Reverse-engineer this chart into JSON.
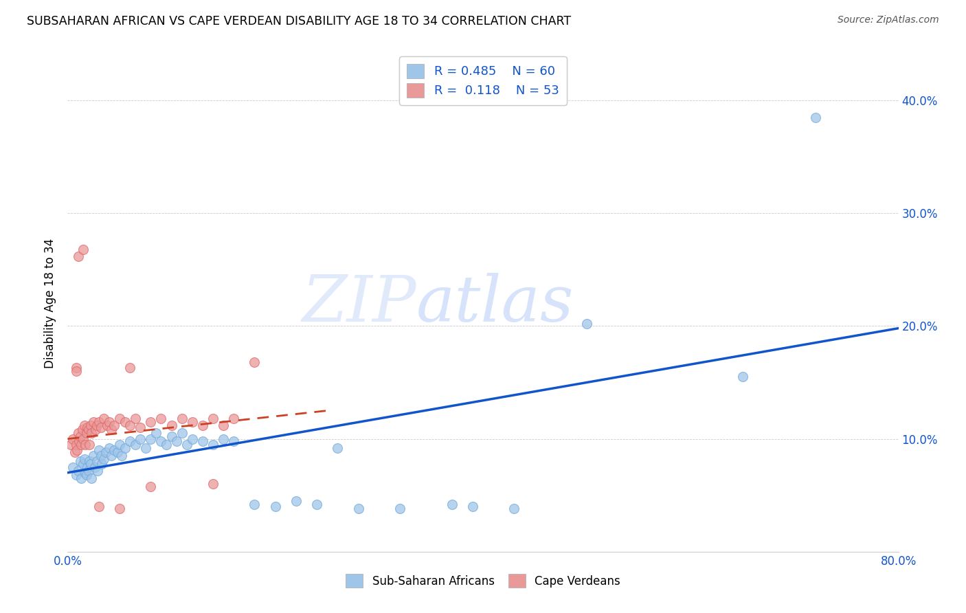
{
  "title": "SUBSAHARAN AFRICAN VS CAPE VERDEAN DISABILITY AGE 18 TO 34 CORRELATION CHART",
  "source": "Source: ZipAtlas.com",
  "ylabel": "Disability Age 18 to 34",
  "xlim": [
    0.0,
    0.8
  ],
  "ylim": [
    0.0,
    0.44
  ],
  "blue_color": "#9fc5e8",
  "pink_color": "#ea9999",
  "blue_line_color": "#1155cc",
  "pink_line_color": "#cc4125",
  "watermark_zip": "ZIP",
  "watermark_atlas": "atlas",
  "legend_text_color": "#1155cc",
  "blue_scatter_x": [
    0.005,
    0.008,
    0.01,
    0.012,
    0.013,
    0.015,
    0.016,
    0.017,
    0.018,
    0.019,
    0.02,
    0.021,
    0.022,
    0.023,
    0.025,
    0.026,
    0.028,
    0.029,
    0.03,
    0.032,
    0.033,
    0.035,
    0.037,
    0.04,
    0.042,
    0.045,
    0.048,
    0.05,
    0.052,
    0.055,
    0.06,
    0.065,
    0.07,
    0.075,
    0.08,
    0.085,
    0.09,
    0.095,
    0.1,
    0.105,
    0.11,
    0.115,
    0.12,
    0.13,
    0.14,
    0.15,
    0.16,
    0.18,
    0.2,
    0.22,
    0.24,
    0.26,
    0.28,
    0.32,
    0.37,
    0.39,
    0.43,
    0.5,
    0.65,
    0.72
  ],
  "blue_scatter_y": [
    0.075,
    0.068,
    0.072,
    0.08,
    0.065,
    0.078,
    0.082,
    0.07,
    0.068,
    0.075,
    0.072,
    0.08,
    0.078,
    0.065,
    0.085,
    0.075,
    0.08,
    0.072,
    0.09,
    0.085,
    0.078,
    0.082,
    0.088,
    0.092,
    0.085,
    0.09,
    0.088,
    0.095,
    0.085,
    0.092,
    0.098,
    0.095,
    0.1,
    0.092,
    0.1,
    0.105,
    0.098,
    0.095,
    0.102,
    0.098,
    0.105,
    0.095,
    0.1,
    0.098,
    0.095,
    0.1,
    0.098,
    0.042,
    0.04,
    0.045,
    0.042,
    0.092,
    0.038,
    0.038,
    0.042,
    0.04,
    0.038,
    0.202,
    0.155,
    0.385
  ],
  "pink_scatter_x": [
    0.003,
    0.005,
    0.007,
    0.008,
    0.009,
    0.01,
    0.011,
    0.012,
    0.013,
    0.014,
    0.015,
    0.016,
    0.017,
    0.018,
    0.019,
    0.02,
    0.021,
    0.022,
    0.023,
    0.025,
    0.027,
    0.028,
    0.03,
    0.032,
    0.035,
    0.038,
    0.04,
    0.042,
    0.045,
    0.05,
    0.055,
    0.06,
    0.065,
    0.07,
    0.08,
    0.09,
    0.1,
    0.11,
    0.12,
    0.13,
    0.14,
    0.15,
    0.16,
    0.01,
    0.015,
    0.008,
    0.06,
    0.18,
    0.008,
    0.08,
    0.14,
    0.05,
    0.03
  ],
  "pink_scatter_y": [
    0.095,
    0.1,
    0.088,
    0.095,
    0.09,
    0.105,
    0.098,
    0.102,
    0.095,
    0.108,
    0.1,
    0.112,
    0.095,
    0.105,
    0.11,
    0.108,
    0.095,
    0.112,
    0.105,
    0.115,
    0.108,
    0.112,
    0.115,
    0.11,
    0.118,
    0.112,
    0.115,
    0.108,
    0.112,
    0.118,
    0.115,
    0.112,
    0.118,
    0.11,
    0.115,
    0.118,
    0.112,
    0.118,
    0.115,
    0.112,
    0.118,
    0.112,
    0.118,
    0.262,
    0.268,
    0.163,
    0.163,
    0.168,
    0.16,
    0.058,
    0.06,
    0.038,
    0.04
  ],
  "blue_line_x": [
    0.0,
    0.8
  ],
  "blue_line_y": [
    0.07,
    0.198
  ],
  "pink_line_x": [
    0.0,
    0.25
  ],
  "pink_line_y": [
    0.1,
    0.125
  ]
}
